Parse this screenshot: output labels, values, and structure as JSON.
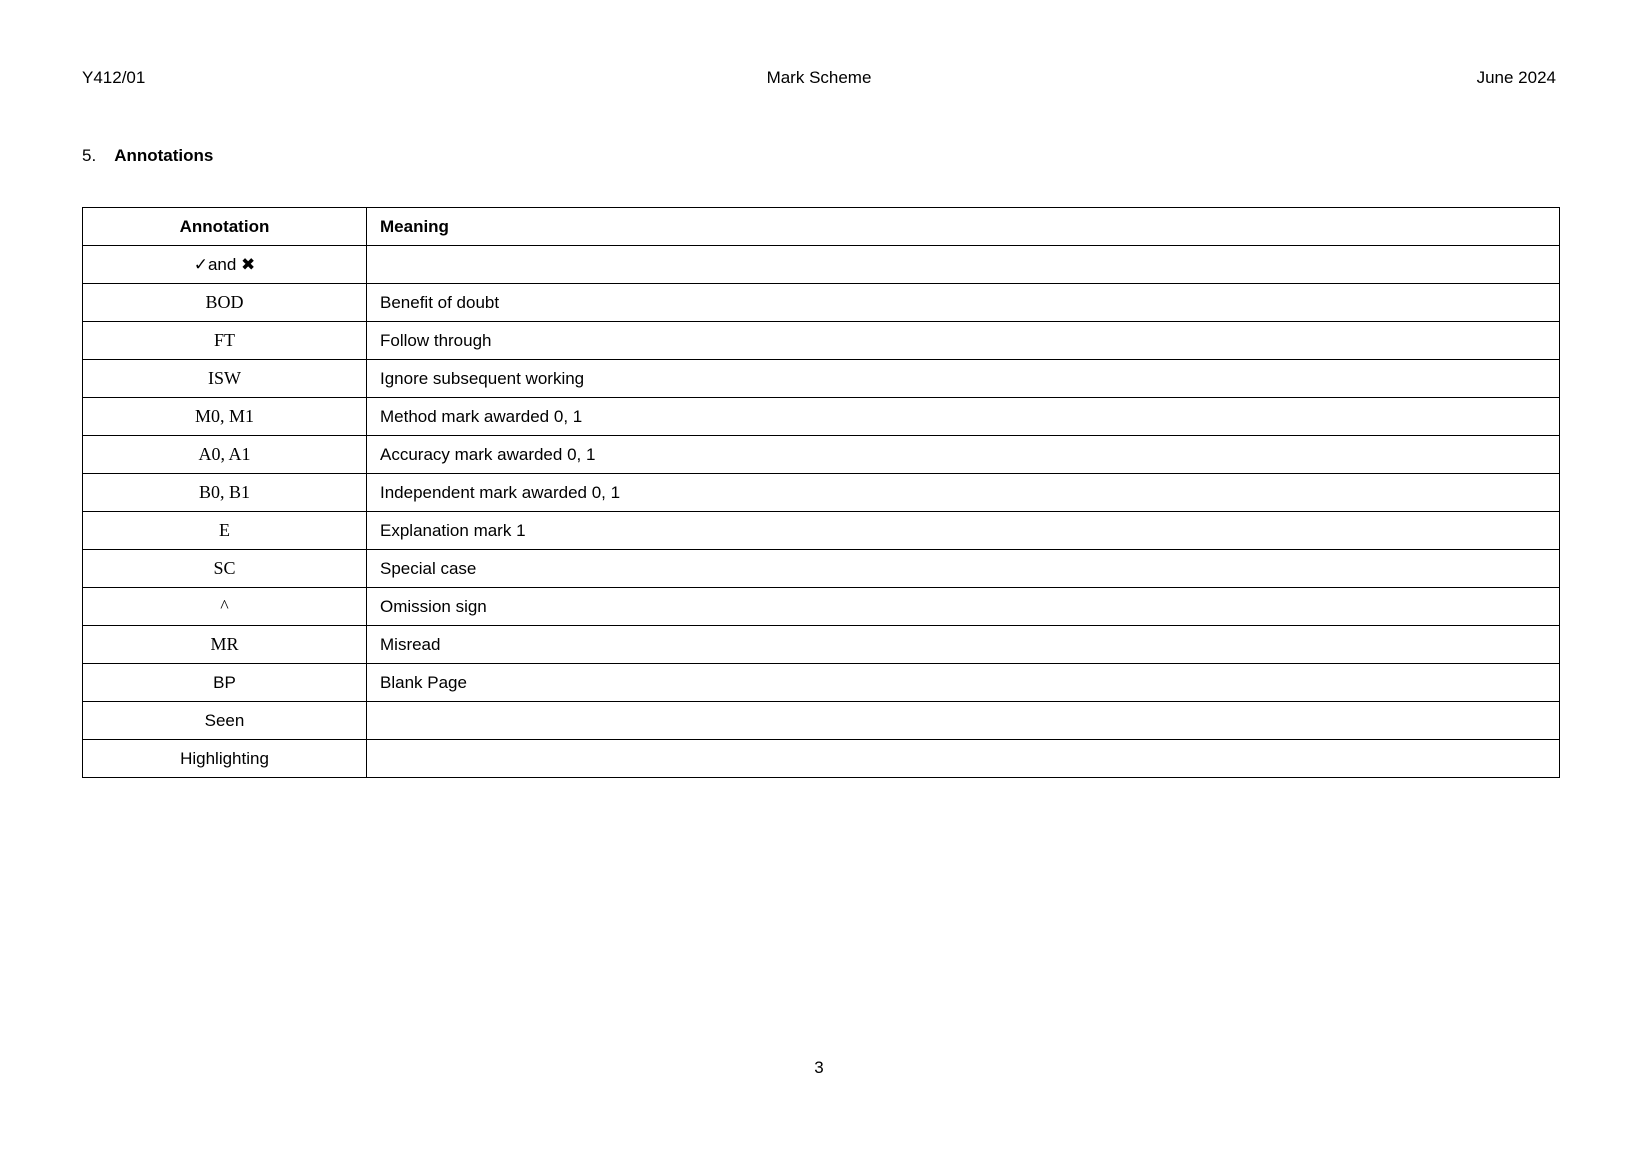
{
  "header": {
    "paper_code": "Y412/01",
    "title": "Mark Scheme",
    "session": "June 2024"
  },
  "section": {
    "number": "5.",
    "title": "Annotations"
  },
  "table": {
    "columns": [
      "Annotation",
      "Meaning"
    ],
    "rows": [
      {
        "annotation": "✓and ✖",
        "meaning": "",
        "style": "sans"
      },
      {
        "annotation": "BOD",
        "meaning": "Benefit of doubt",
        "style": "serif"
      },
      {
        "annotation": "FT",
        "meaning": "Follow through",
        "style": "serif"
      },
      {
        "annotation": "ISW",
        "meaning": "Ignore subsequent working",
        "style": "serif"
      },
      {
        "annotation": "M0, M1",
        "meaning": "Method mark awarded 0, 1",
        "style": "serif"
      },
      {
        "annotation": "A0, A1",
        "meaning": "Accuracy mark awarded 0, 1",
        "style": "serif"
      },
      {
        "annotation": "B0, B1",
        "meaning": "Independent mark awarded 0, 1",
        "style": "serif"
      },
      {
        "annotation": "E",
        "meaning": "Explanation mark 1",
        "style": "serif"
      },
      {
        "annotation": "SC",
        "meaning": "Special case",
        "style": "serif"
      },
      {
        "annotation": "^",
        "meaning": "Omission sign",
        "style": "serif"
      },
      {
        "annotation": "MR",
        "meaning": "Misread",
        "style": "serif"
      },
      {
        "annotation": "BP",
        "meaning": "Blank Page",
        "style": "sans"
      },
      {
        "annotation": "Seen",
        "meaning": "",
        "style": "sans"
      },
      {
        "annotation": "Highlighting",
        "meaning": "",
        "style": "sans"
      }
    ]
  },
  "footer": {
    "page_number": "3"
  }
}
